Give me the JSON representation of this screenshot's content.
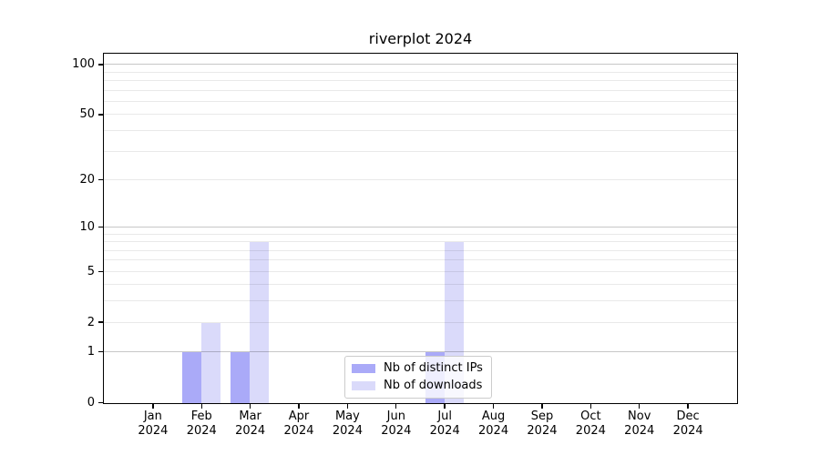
{
  "title": "riverplot 2024",
  "chart_data": {
    "type": "bar",
    "categories": [
      "Jan",
      "Feb",
      "Mar",
      "Apr",
      "May",
      "Jun",
      "Jul",
      "Aug",
      "Sep",
      "Oct",
      "Nov",
      "Dec"
    ],
    "category_year": "2024",
    "series": [
      {
        "name": "Nb of distinct IPs",
        "color": "#aaaaf8",
        "values": [
          0,
          1,
          1,
          0,
          0,
          0,
          1,
          0,
          0,
          0,
          0,
          0
        ]
      },
      {
        "name": "Nb of downloads",
        "color": "#dadafa",
        "values": [
          0,
          2,
          8,
          0,
          0,
          0,
          8,
          0,
          0,
          0,
          0,
          0
        ]
      }
    ],
    "yscale": "log1p",
    "ylim": [
      0,
      100
    ],
    "ytick_values": [
      100,
      50,
      20,
      10,
      5,
      2,
      1,
      0
    ],
    "grid_major_values": [
      1,
      10,
      100
    ],
    "grid_minor_values": [
      2,
      3,
      4,
      5,
      6,
      7,
      8,
      9,
      20,
      30,
      40,
      50,
      60,
      70,
      80,
      90
    ],
    "grid_on": true,
    "legend_position": "inside-lower-center"
  }
}
